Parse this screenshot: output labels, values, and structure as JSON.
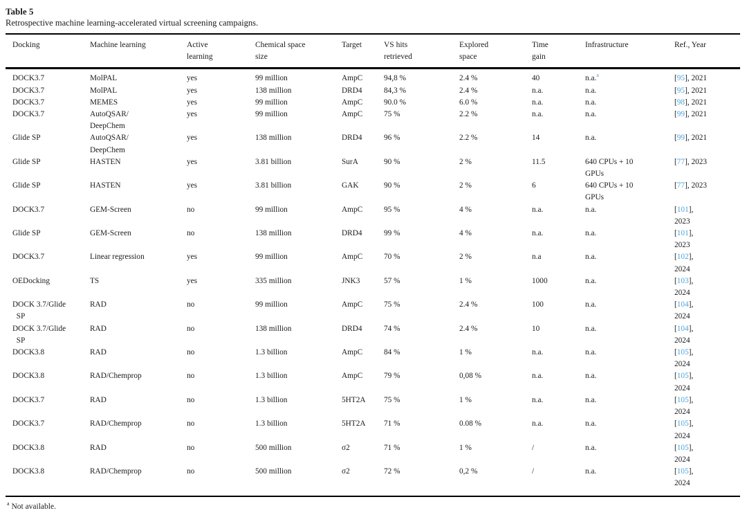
{
  "caption": {
    "label": "Table 5",
    "description": "Retrospective machine learning-accelerated virtual screening campaigns."
  },
  "colors": {
    "link_blue": "#4fa3d8",
    "text": "#1a1a1a",
    "rule": "#000000"
  },
  "footnote": {
    "marker": "a",
    "text": "Not available."
  },
  "table": {
    "headers": [
      "Docking",
      "Machine learning",
      "Active\nlearning",
      "Chemical space\nsize",
      "Target",
      "VS hits\nretrieved",
      "Explored\nspace",
      "Time\ngain",
      "Infrastructure",
      "Ref., Year"
    ],
    "rows": [
      {
        "docking": "DOCK3.7",
        "ml": "MolPAL",
        "active_learning": "yes",
        "space": "99 million",
        "target": "AmpC",
        "hits": "94,8 %",
        "explored": "2.4 %",
        "time_gain": "40",
        "infrastructure": "n.a.",
        "infrastructure_sup": "a",
        "ref": "95",
        "year": "2021",
        "ref_wrap": false
      },
      {
        "docking": "DOCK3.7",
        "ml": "MolPAL",
        "active_learning": "yes",
        "space": "138 million",
        "target": "DRD4",
        "hits": "84,3 %",
        "explored": "2.4 %",
        "time_gain": "n.a.",
        "infrastructure": "n.a.",
        "ref": "95",
        "year": "2021",
        "ref_wrap": false
      },
      {
        "docking": "DOCK3.7",
        "ml": "MEMES",
        "active_learning": "yes",
        "space": "99 million",
        "target": "AmpC",
        "hits": "90.0 %",
        "explored": "6.0 %",
        "time_gain": "n.a.",
        "infrastructure": "n.a.",
        "ref": "98",
        "year": "2021",
        "ref_wrap": false
      },
      {
        "docking": "DOCK3.7",
        "ml": "AutoQSAR/\nDeepChem",
        "active_learning": "yes",
        "space": "99 million",
        "target": "AmpC",
        "hits": "75 %",
        "explored": "2.2 %",
        "time_gain": "n.a.",
        "infrastructure": "n.a.",
        "ref": "99",
        "year": "2021",
        "ref_wrap": false
      },
      {
        "docking": "Glide SP",
        "ml": "AutoQSAR/\nDeepChem",
        "active_learning": "yes",
        "space": "138 million",
        "target": "DRD4",
        "hits": "96 %",
        "explored": "2.2 %",
        "time_gain": "14",
        "infrastructure": "n.a.",
        "ref": "99",
        "year": "2021",
        "ref_wrap": false
      },
      {
        "docking": "Glide SP",
        "ml": "HASTEN",
        "active_learning": "yes",
        "space": "3.81 billion",
        "target": "SurA",
        "hits": "90 %",
        "explored": "2 %",
        "time_gain": "11.5",
        "infrastructure": "640 CPUs + 10\nGPUs",
        "ref": "77",
        "year": "2023",
        "ref_wrap": false
      },
      {
        "docking": "Glide SP",
        "ml": "HASTEN",
        "active_learning": "yes",
        "space": "3.81 billion",
        "target": "GAK",
        "hits": "90 %",
        "explored": "2 %",
        "time_gain": "6",
        "infrastructure": "640 CPUs + 10\nGPUs",
        "ref": "77",
        "year": "2023",
        "ref_wrap": false
      },
      {
        "docking": "DOCK3.7",
        "ml": "GEM-Screen",
        "active_learning": "no",
        "space": "99 million",
        "target": "AmpC",
        "hits": "95 %",
        "explored": "4 %",
        "time_gain": "n.a.",
        "infrastructure": "n.a.",
        "ref": "101",
        "year": "2023",
        "ref_wrap": true
      },
      {
        "docking": "Glide SP",
        "ml": "GEM-Screen",
        "active_learning": "no",
        "space": "138 million",
        "target": "DRD4",
        "hits": "99 %",
        "explored": "4 %",
        "time_gain": "n.a.",
        "infrastructure": "n.a.",
        "ref": "101",
        "year": "2023",
        "ref_wrap": true
      },
      {
        "docking": "DOCK3.7",
        "ml": "Linear regression",
        "active_learning": "yes",
        "space": "99 million",
        "target": "AmpC",
        "hits": "70 %",
        "explored": "2 %",
        "time_gain": "n.a",
        "infrastructure": "n.a.",
        "ref": "102",
        "year": "2024",
        "ref_wrap": true
      },
      {
        "docking": "OEDocking",
        "ml": "TS",
        "active_learning": "yes",
        "space": "335 million",
        "target": "JNK3",
        "hits": "57 %",
        "explored": "1 %",
        "time_gain": "1000",
        "infrastructure": "n.a.",
        "ref": "103",
        "year": "2024",
        "ref_wrap": true
      },
      {
        "docking": "DOCK 3.7/Glide\n  SP",
        "ml": "RAD",
        "active_learning": "no",
        "space": "99 million",
        "target": "AmpC",
        "hits": "75 %",
        "explored": "2.4 %",
        "time_gain": "100",
        "infrastructure": "n.a.",
        "ref": "104",
        "year": "2024",
        "ref_wrap": true
      },
      {
        "docking": "DOCK 3.7/Glide\n  SP",
        "ml": "RAD",
        "active_learning": "no",
        "space": "138 million",
        "target": "DRD4",
        "hits": "74 %",
        "explored": "2.4 %",
        "time_gain": "10",
        "infrastructure": "n.a.",
        "ref": "104",
        "year": "2024",
        "ref_wrap": true
      },
      {
        "docking": "DOCK3.8",
        "ml": "RAD",
        "active_learning": "no",
        "space": "1.3 billion",
        "target": "AmpC",
        "hits": "84 %",
        "explored": "1 %",
        "time_gain": "n.a.",
        "infrastructure": "n.a.",
        "ref": "105",
        "year": "2024",
        "ref_wrap": true
      },
      {
        "docking": "DOCK3.8",
        "ml": "RAD/Chemprop",
        "active_learning": "no",
        "space": "1.3 billion",
        "target": "AmpC",
        "hits": "79 %",
        "explored": "0,08 %",
        "time_gain": "n.a.",
        "infrastructure": "n.a.",
        "ref": "105",
        "year": "2024",
        "ref_wrap": true
      },
      {
        "docking": "DOCK3.7",
        "ml": "RAD",
        "active_learning": "no",
        "space": "1.3 billion",
        "target": "5HT2A",
        "hits": "75 %",
        "explored": "1 %",
        "time_gain": "n.a.",
        "infrastructure": "n.a.",
        "ref": "105",
        "year": "2024",
        "ref_wrap": true
      },
      {
        "docking": "DOCK3.7",
        "ml": "RAD/Chemprop",
        "active_learning": "no",
        "space": "1.3 billion",
        "target": "5HT2A",
        "hits": "71 %",
        "explored": "0.08 %",
        "time_gain": "n.a.",
        "infrastructure": "n.a.",
        "ref": "105",
        "year": "2024",
        "ref_wrap": true
      },
      {
        "docking": "DOCK3.8",
        "ml": "RAD",
        "active_learning": "no",
        "space": "500 million",
        "target": "σ2",
        "hits": "71 %",
        "explored": "1 %",
        "time_gain": "/",
        "infrastructure": "n.a.",
        "ref": "105",
        "year": "2024",
        "ref_wrap": true
      },
      {
        "docking": "DOCK3.8",
        "ml": "RAD/Chemprop",
        "active_learning": "no",
        "space": "500 million",
        "target": "σ2",
        "hits": "72 %",
        "explored": "0,2 %",
        "time_gain": "/",
        "infrastructure": "n.a.",
        "ref": "105",
        "year": "2024",
        "ref_wrap": true
      }
    ]
  }
}
